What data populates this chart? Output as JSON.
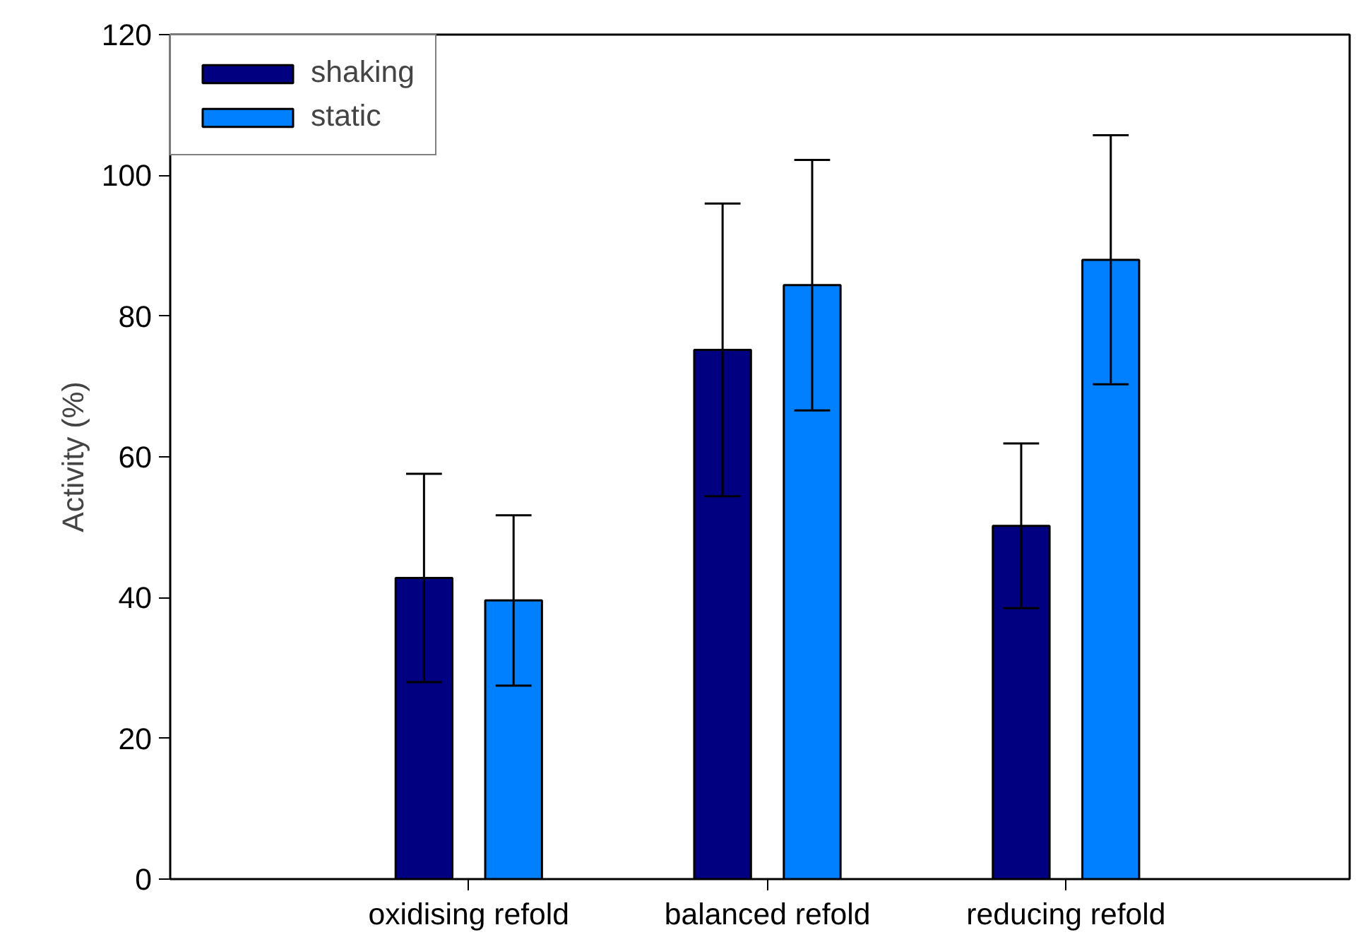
{
  "chart_data": {
    "type": "bar",
    "ylabel": "Activity (%)",
    "categories": [
      "oxidising refold",
      "balanced refold",
      "reducing refold"
    ],
    "ylim": [
      0,
      120
    ],
    "yticks": [
      0,
      20,
      40,
      60,
      80,
      100,
      120
    ],
    "grid": false,
    "legend": "top left",
    "series": [
      {
        "name": "shaking",
        "color": "#000080",
        "values": [
          42.8,
          75.2,
          50.2
        ],
        "errors": [
          14.8,
          20.8,
          11.7
        ]
      },
      {
        "name": "static",
        "color": "#0080ff",
        "values": [
          39.6,
          84.4,
          88.0
        ],
        "errors": [
          12.1,
          17.8,
          17.7
        ]
      }
    ]
  }
}
